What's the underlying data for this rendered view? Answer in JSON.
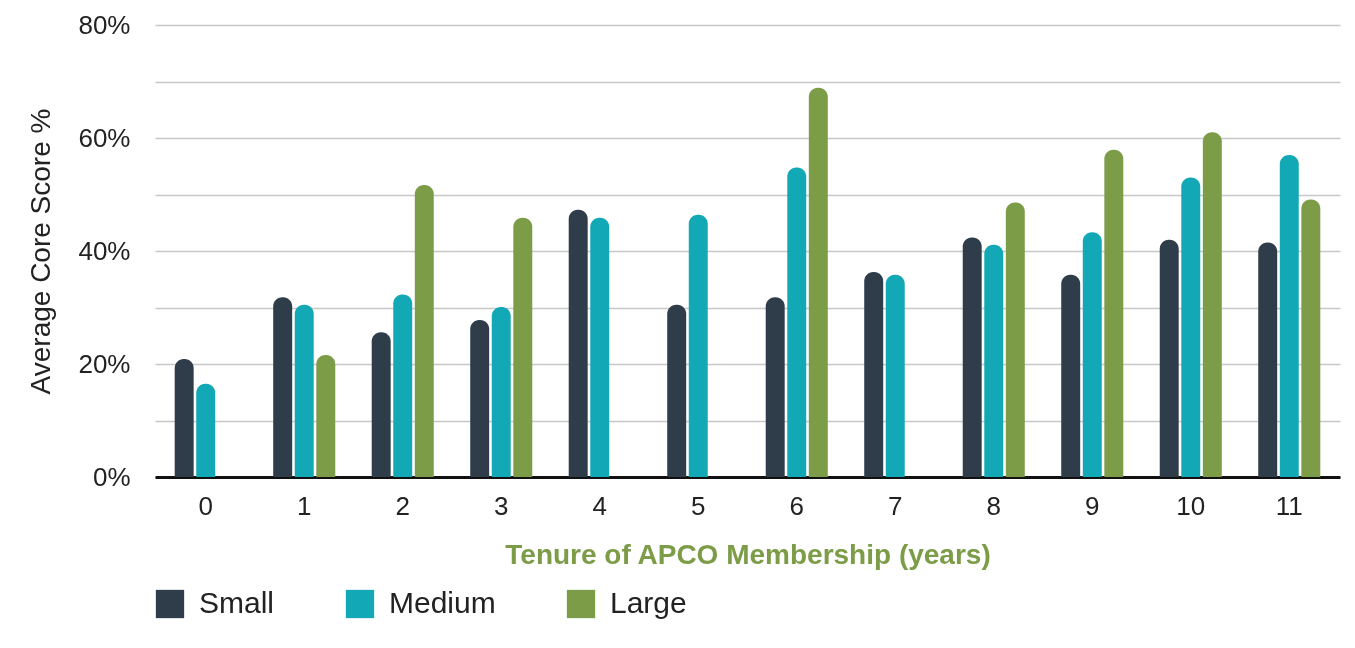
{
  "chart_data": {
    "type": "bar",
    "xlabel": "Tenure of APCO Membership (years)",
    "ylabel": "Average Core Score %",
    "categories": [
      "0",
      "1",
      "2",
      "3",
      "4",
      "5",
      "6",
      "7",
      "8",
      "9",
      "10",
      "11"
    ],
    "series": [
      {
        "name": "Small",
        "color": "#2e3d49",
        "values": [
          20.9,
          31.8,
          25.6,
          27.8,
          47.3,
          30.5,
          31.8,
          36.3,
          42.4,
          35.8,
          42.0,
          41.5
        ]
      },
      {
        "name": "Medium",
        "color": "#12a8b5",
        "values": [
          16.5,
          30.5,
          32.3,
          30.1,
          45.9,
          46.4,
          54.8,
          35.8,
          41.1,
          43.3,
          53.0,
          57.0
        ]
      },
      {
        "name": "Large",
        "color": "#7c9c48",
        "values": [
          null,
          21.6,
          51.7,
          45.9,
          null,
          null,
          68.9,
          null,
          48.6,
          57.9,
          61.0,
          49.1
        ]
      }
    ],
    "ylim": [
      0,
      80
    ],
    "yticks": [
      {
        "value": 0,
        "label": "0%"
      },
      {
        "value": 10,
        "label": null
      },
      {
        "value": 20,
        "label": "20%"
      },
      {
        "value": 30,
        "label": null
      },
      {
        "value": 40,
        "label": "40%"
      },
      {
        "value": 50,
        "label": null
      },
      {
        "value": 60,
        "label": "60%"
      },
      {
        "value": 70,
        "label": null
      },
      {
        "value": 80,
        "label": "80%"
      }
    ],
    "grid": "y",
    "legend": "bottom"
  }
}
